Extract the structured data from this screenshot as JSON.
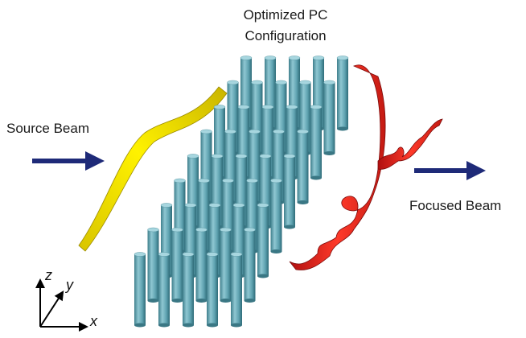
{
  "title": {
    "lines": [
      "Optimized PC",
      "Configuration"
    ]
  },
  "labels": {
    "source": "Source Beam",
    "focused": "Focused Beam"
  },
  "axes": {
    "z": "z",
    "y": "y",
    "x": "x"
  }
}
